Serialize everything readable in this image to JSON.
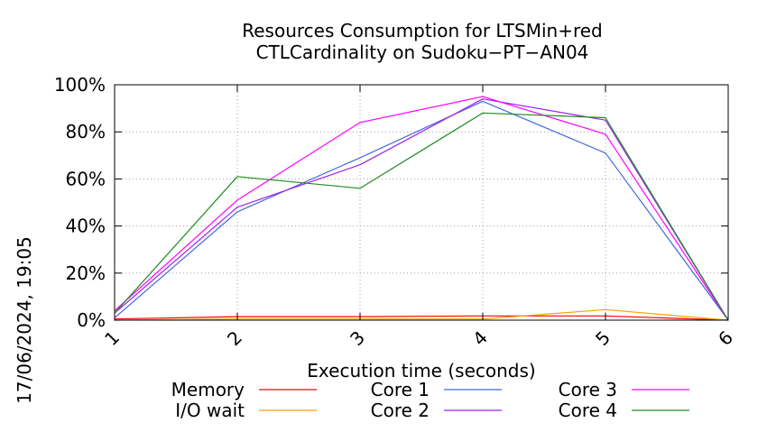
{
  "chart_data": {
    "type": "line",
    "title_lines": [
      "Resources Consumption for LTSMin+red",
      "CTLCardinality on Sudoku−PT−AN04"
    ],
    "xlabel": "Execution time (seconds)",
    "ylabel": "",
    "side_label": "17/06/2024, 19:05",
    "x": [
      1,
      2,
      3,
      4,
      5,
      6
    ],
    "xlim": [
      1,
      6
    ],
    "ylim": [
      0,
      100
    ],
    "y_unit": "%",
    "x_ticks": [
      "1",
      "2",
      "3",
      "4",
      "5",
      "6"
    ],
    "y_ticks": [
      "0%",
      "20%",
      "40%",
      "60%",
      "80%",
      "100%"
    ],
    "grid": true,
    "legend_position": "bottom",
    "series": [
      {
        "name": "Memory",
        "color": "#ff0000",
        "values": [
          0.5,
          1.5,
          1.5,
          1.8,
          1.8,
          0
        ]
      },
      {
        "name": "I/O wait",
        "color": "#ffa000",
        "values": [
          0,
          0.5,
          0.5,
          0.5,
          4.5,
          0
        ]
      },
      {
        "name": "Core 1",
        "color": "#4169e1",
        "values": [
          1,
          46,
          69,
          93,
          71,
          0
        ]
      },
      {
        "name": "Core 2",
        "color": "#a020f0",
        "values": [
          3,
          48,
          66,
          94,
          85,
          0
        ]
      },
      {
        "name": "Core 3",
        "color": "#ff00ff",
        "values": [
          4,
          51,
          84,
          95,
          79,
          0
        ]
      },
      {
        "name": "Core 4",
        "color": "#228b22",
        "values": [
          3,
          61,
          56,
          88,
          86,
          0
        ]
      }
    ]
  }
}
